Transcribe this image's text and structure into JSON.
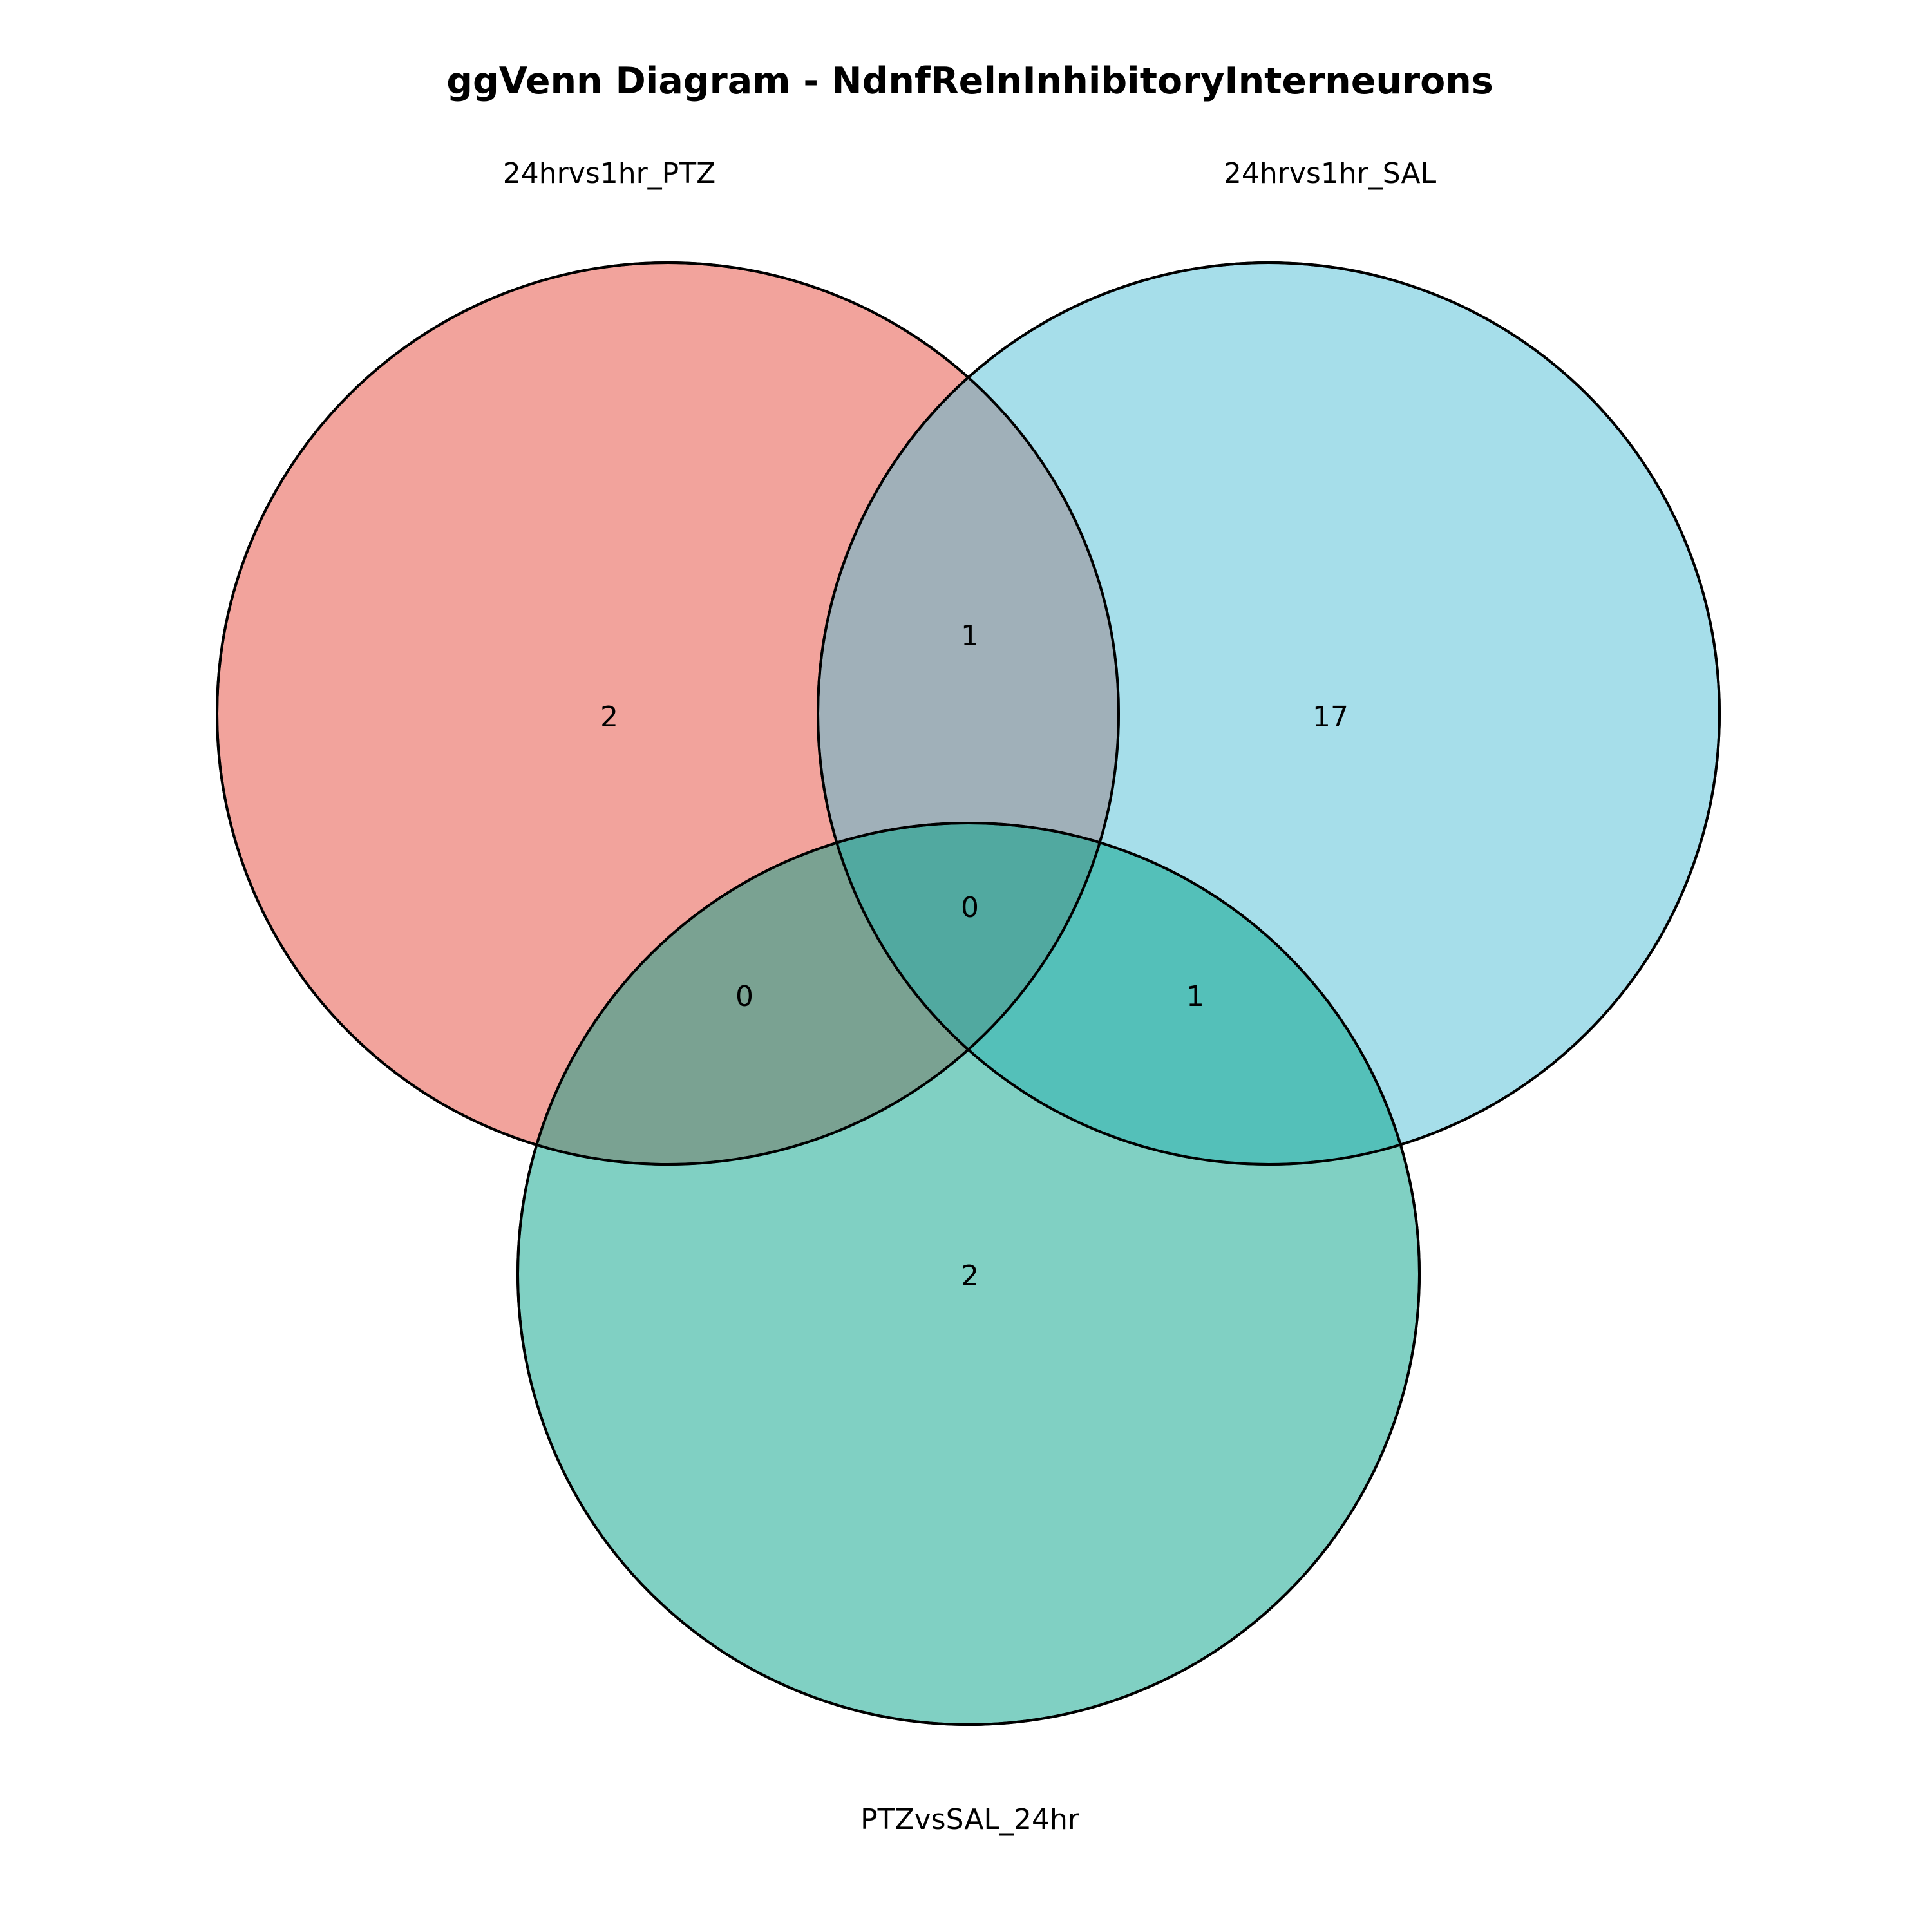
{
  "title": "ggVenn Diagram - NdnfRelnInhibitoryInterneurons",
  "sets": [
    {
      "name": "24hrvs1hr_PTZ",
      "color": "#E5483A",
      "opacity": 0.5
    },
    {
      "name": "24hrvs1hr_SAL",
      "color": "#4EBDD6",
      "opacity": 0.5
    },
    {
      "name": "PTZvsSAL_24hr",
      "color": "#02A187",
      "opacity": 0.5
    }
  ],
  "regions": {
    "only_PTZ": "2",
    "only_SAL": "17",
    "only_PTZvsSAL": "2",
    "PTZ_SAL": "1",
    "PTZ_PTZvsSAL": "0",
    "SAL_PTZvsSAL": "1",
    "all_three": "0"
  }
}
